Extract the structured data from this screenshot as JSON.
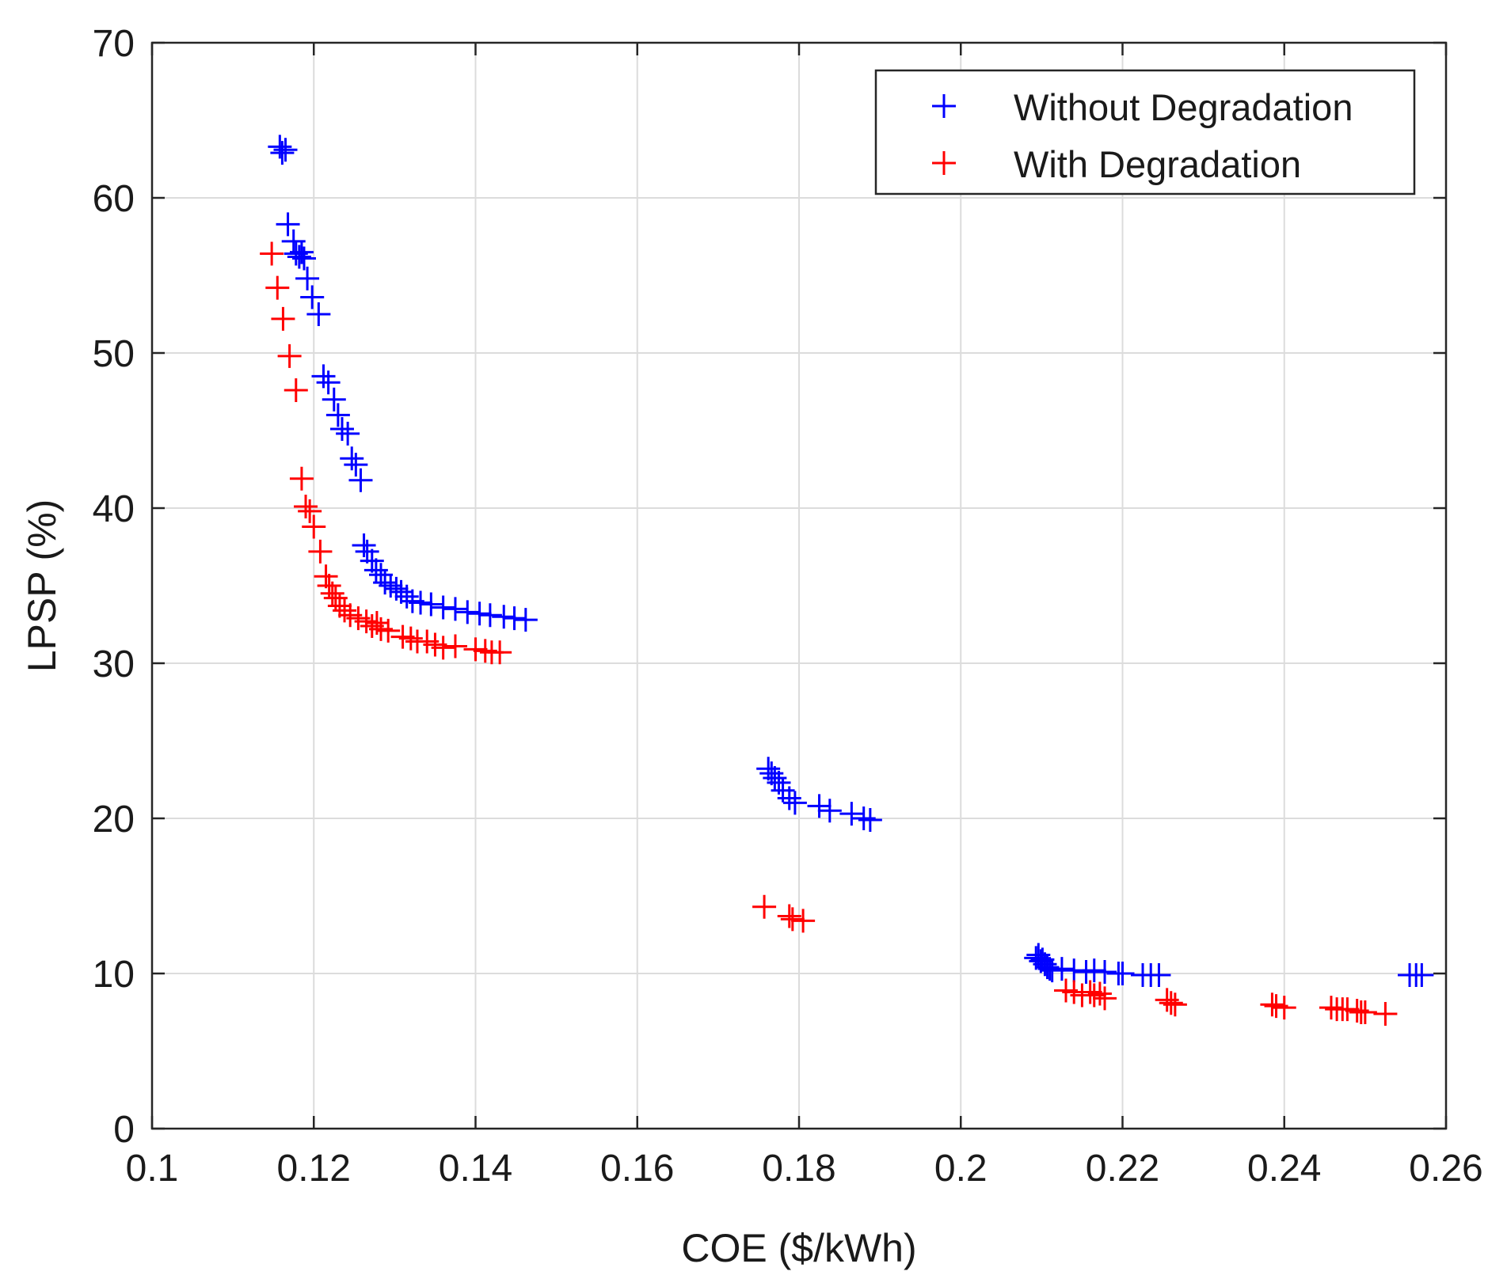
{
  "chart_data": {
    "type": "scatter",
    "title": "",
    "xlabel": "COE ($/kWh)",
    "ylabel": "LPSP (%)",
    "xlim": [
      0.1,
      0.26
    ],
    "ylim": [
      0,
      70
    ],
    "x_ticks": [
      0.1,
      0.12,
      0.14,
      0.16,
      0.18,
      0.2,
      0.22,
      0.24,
      0.26
    ],
    "x_tick_labels": [
      "0.1",
      "0.12",
      "0.14",
      "0.16",
      "0.18",
      "0.2",
      "0.22",
      "0.24",
      "0.26"
    ],
    "y_ticks": [
      0,
      10,
      20,
      30,
      40,
      50,
      60,
      70
    ],
    "y_tick_labels": [
      "0",
      "10",
      "20",
      "30",
      "40",
      "50",
      "60",
      "70"
    ],
    "grid": true,
    "legend_position": "top-right",
    "marker": "+",
    "series": [
      {
        "name": "Without Degradation",
        "color": "#0000ff",
        "points": [
          [
            0.1158,
            63.3
          ],
          [
            0.1161,
            62.9
          ],
          [
            0.1165,
            63.1
          ],
          [
            0.1168,
            58.3
          ],
          [
            0.1175,
            57.2
          ],
          [
            0.1178,
            56.4
          ],
          [
            0.1182,
            56.2
          ],
          [
            0.1185,
            56.5
          ],
          [
            0.1188,
            56.1
          ],
          [
            0.1192,
            54.8
          ],
          [
            0.1198,
            53.6
          ],
          [
            0.1206,
            52.5
          ],
          [
            0.1212,
            48.5
          ],
          [
            0.1218,
            48.1
          ],
          [
            0.1225,
            47.0
          ],
          [
            0.123,
            46.0
          ],
          [
            0.1235,
            45.1
          ],
          [
            0.1242,
            44.8
          ],
          [
            0.1247,
            43.2
          ],
          [
            0.1252,
            42.8
          ],
          [
            0.1258,
            41.8
          ],
          [
            0.1262,
            37.6
          ],
          [
            0.1266,
            37.2
          ],
          [
            0.1272,
            36.6
          ],
          [
            0.1277,
            36.0
          ],
          [
            0.1283,
            35.7
          ],
          [
            0.1288,
            35.2
          ],
          [
            0.1295,
            35.0
          ],
          [
            0.1302,
            34.8
          ],
          [
            0.1308,
            34.6
          ],
          [
            0.1315,
            34.3
          ],
          [
            0.1322,
            34.0
          ],
          [
            0.1332,
            33.9
          ],
          [
            0.1345,
            33.8
          ],
          [
            0.136,
            33.6
          ],
          [
            0.1375,
            33.5
          ],
          [
            0.139,
            33.3
          ],
          [
            0.1405,
            33.2
          ],
          [
            0.1418,
            33.1
          ],
          [
            0.1435,
            33.0
          ],
          [
            0.1448,
            32.9
          ],
          [
            0.1462,
            32.8
          ],
          [
            0.1762,
            23.2
          ],
          [
            0.1766,
            22.9
          ],
          [
            0.177,
            22.6
          ],
          [
            0.1775,
            22.3
          ],
          [
            0.178,
            21.8
          ],
          [
            0.1788,
            21.3
          ],
          [
            0.1795,
            21.0
          ],
          [
            0.1825,
            20.8
          ],
          [
            0.1838,
            20.5
          ],
          [
            0.1865,
            20.3
          ],
          [
            0.188,
            20.0
          ],
          [
            0.1888,
            19.9
          ],
          [
            0.2093,
            11.0
          ],
          [
            0.2096,
            11.2
          ],
          [
            0.2099,
            10.8
          ],
          [
            0.2101,
            10.9
          ],
          [
            0.2104,
            10.6
          ],
          [
            0.2107,
            10.4
          ],
          [
            0.211,
            10.3
          ],
          [
            0.2113,
            10.2
          ],
          [
            0.2125,
            10.3
          ],
          [
            0.214,
            10.2
          ],
          [
            0.2155,
            10.1
          ],
          [
            0.2165,
            10.2
          ],
          [
            0.2178,
            10.1
          ],
          [
            0.2195,
            10.0
          ],
          [
            0.22,
            10.0
          ],
          [
            0.2225,
            9.9
          ],
          [
            0.2235,
            9.9
          ],
          [
            0.2245,
            9.9
          ],
          [
            0.2555,
            9.9
          ],
          [
            0.2563,
            9.9
          ],
          [
            0.257,
            9.9
          ]
        ]
      },
      {
        "name": "With Degradation",
        "color": "#ff0000",
        "points": [
          [
            0.1148,
            56.4
          ],
          [
            0.1155,
            54.2
          ],
          [
            0.1162,
            52.2
          ],
          [
            0.117,
            49.8
          ],
          [
            0.1178,
            47.6
          ],
          [
            0.1185,
            41.9
          ],
          [
            0.119,
            40.1
          ],
          [
            0.1195,
            39.8
          ],
          [
            0.12,
            38.8
          ],
          [
            0.1208,
            37.2
          ],
          [
            0.1215,
            35.6
          ],
          [
            0.1219,
            35.0
          ],
          [
            0.1223,
            34.5
          ],
          [
            0.1227,
            34.2
          ],
          [
            0.1232,
            33.7
          ],
          [
            0.1238,
            33.4
          ],
          [
            0.1245,
            33.1
          ],
          [
            0.1255,
            32.9
          ],
          [
            0.1265,
            32.7
          ],
          [
            0.1272,
            32.4
          ],
          [
            0.1278,
            32.6
          ],
          [
            0.1283,
            32.2
          ],
          [
            0.1292,
            32.1
          ],
          [
            0.131,
            31.7
          ],
          [
            0.132,
            31.6
          ],
          [
            0.1328,
            31.4
          ],
          [
            0.134,
            31.4
          ],
          [
            0.135,
            31.2
          ],
          [
            0.136,
            31.0
          ],
          [
            0.1375,
            31.1
          ],
          [
            0.14,
            30.9
          ],
          [
            0.1412,
            30.8
          ],
          [
            0.142,
            30.7
          ],
          [
            0.143,
            30.7
          ],
          [
            0.1757,
            14.3
          ],
          [
            0.1788,
            13.7
          ],
          [
            0.1792,
            13.5
          ],
          [
            0.1805,
            13.4
          ],
          [
            0.213,
            8.9
          ],
          [
            0.214,
            8.8
          ],
          [
            0.215,
            8.6
          ],
          [
            0.216,
            8.8
          ],
          [
            0.2165,
            8.6
          ],
          [
            0.2172,
            8.7
          ],
          [
            0.2178,
            8.4
          ],
          [
            0.2255,
            8.3
          ],
          [
            0.226,
            8.1
          ],
          [
            0.2265,
            8.0
          ],
          [
            0.2385,
            8.0
          ],
          [
            0.239,
            7.9
          ],
          [
            0.24,
            7.8
          ],
          [
            0.2458,
            7.8
          ],
          [
            0.2465,
            7.7
          ],
          [
            0.2472,
            7.7
          ],
          [
            0.2478,
            7.7
          ],
          [
            0.249,
            7.6
          ],
          [
            0.2495,
            7.5
          ],
          [
            0.25,
            7.5
          ],
          [
            0.2525,
            7.4
          ]
        ]
      }
    ]
  }
}
